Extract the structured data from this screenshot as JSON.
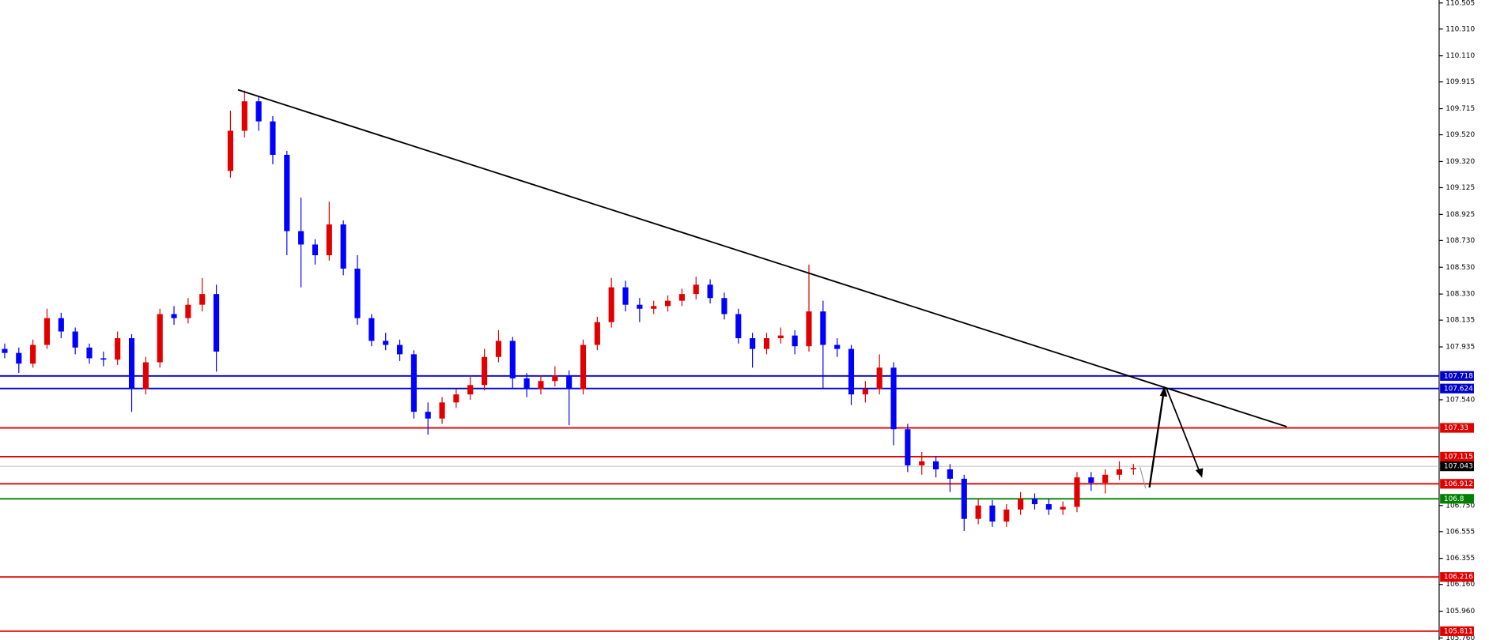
{
  "chart_data": {
    "type": "candlestick",
    "up_color": "#e00000",
    "down_color": "#0000ff",
    "series": {
      "open": [
        107.92,
        107.89,
        107.81,
        107.95,
        108.15,
        108.05,
        107.93,
        107.85,
        107.84,
        108.0,
        107.62,
        107.82,
        108.18,
        108.15,
        108.25,
        108.33,
        109.25,
        109.55,
        109.77,
        109.62,
        109.37,
        108.8,
        108.7,
        108.62,
        108.85,
        108.52,
        108.15,
        107.98,
        107.95,
        107.88,
        107.45,
        107.4,
        107.52,
        107.58,
        107.65,
        107.86,
        107.98,
        107.7,
        107.62,
        107.68,
        107.72,
        107.62,
        107.95,
        108.12,
        108.38,
        108.25,
        108.22,
        108.24,
        108.28,
        108.33,
        108.4,
        108.3,
        108.18,
        108.0,
        107.92,
        108.0,
        108.02,
        107.94,
        108.2,
        107.95,
        107.92,
        107.58,
        107.62,
        107.78,
        107.32,
        107.05,
        107.08,
        107.02,
        106.95,
        106.65,
        106.75,
        106.63,
        106.72,
        106.8,
        106.76,
        106.72,
        106.74,
        106.96,
        106.92,
        106.98,
        107.02
      ],
      "high": [
        107.96,
        107.93,
        107.99,
        108.22,
        108.19,
        108.08,
        107.96,
        107.9,
        108.05,
        108.03,
        107.86,
        108.22,
        108.24,
        108.3,
        108.45,
        108.4,
        109.7,
        109.85,
        109.81,
        109.66,
        109.4,
        109.05,
        108.74,
        109.02,
        108.88,
        108.62,
        108.18,
        108.04,
        107.99,
        107.91,
        107.52,
        107.56,
        107.62,
        107.72,
        107.92,
        108.06,
        108.01,
        107.74,
        107.72,
        107.79,
        107.76,
        107.99,
        108.16,
        108.45,
        108.43,
        108.3,
        108.28,
        108.32,
        108.37,
        108.46,
        108.44,
        108.34,
        108.22,
        108.04,
        108.04,
        108.08,
        108.06,
        108.55,
        108.28,
        108.0,
        107.95,
        107.68,
        107.88,
        107.82,
        107.36,
        107.15,
        107.12,
        107.06,
        106.98,
        106.8,
        106.79,
        106.76,
        106.85,
        106.84,
        106.8,
        106.78,
        107.0,
        107.0,
        107.02,
        107.08,
        107.06
      ],
      "low": [
        107.85,
        107.74,
        107.78,
        107.92,
        108.0,
        107.88,
        107.81,
        107.79,
        107.8,
        107.45,
        107.58,
        107.78,
        108.1,
        108.11,
        108.2,
        107.75,
        109.2,
        109.5,
        109.55,
        109.3,
        108.62,
        108.38,
        108.55,
        108.58,
        108.47,
        108.1,
        107.94,
        107.91,
        107.83,
        107.4,
        107.28,
        107.36,
        107.48,
        107.54,
        107.61,
        107.82,
        107.62,
        107.56,
        107.58,
        107.64,
        107.35,
        107.58,
        107.91,
        108.08,
        108.2,
        108.12,
        108.18,
        108.2,
        108.24,
        108.29,
        108.26,
        108.14,
        107.96,
        107.78,
        107.88,
        107.96,
        107.88,
        107.9,
        107.62,
        107.86,
        107.5,
        107.52,
        107.58,
        107.2,
        107.0,
        106.98,
        106.96,
        106.85,
        106.56,
        106.61,
        106.59,
        106.59,
        106.68,
        106.72,
        106.68,
        106.68,
        106.7,
        106.86,
        106.84,
        106.94,
        106.98
      ],
      "close": [
        107.89,
        107.81,
        107.95,
        108.15,
        108.05,
        107.93,
        107.85,
        107.84,
        108.0,
        107.62,
        107.82,
        108.18,
        108.15,
        108.25,
        108.33,
        107.9,
        109.55,
        109.77,
        109.62,
        109.37,
        108.8,
        108.7,
        108.62,
        108.85,
        108.52,
        108.15,
        107.98,
        107.95,
        107.88,
        107.45,
        107.4,
        107.52,
        107.58,
        107.65,
        107.86,
        107.98,
        107.7,
        107.62,
        107.68,
        107.72,
        107.62,
        107.95,
        108.12,
        108.38,
        108.25,
        108.22,
        108.24,
        108.28,
        108.33,
        108.4,
        108.3,
        108.18,
        108.0,
        107.92,
        108.0,
        108.02,
        107.94,
        108.2,
        107.95,
        107.92,
        107.58,
        107.62,
        107.78,
        107.32,
        107.05,
        107.08,
        107.02,
        106.95,
        106.65,
        106.75,
        106.63,
        106.72,
        106.8,
        106.76,
        106.72,
        106.74,
        106.96,
        106.92,
        106.98,
        107.02,
        107.03
      ]
    },
    "ylim": [
      105.745,
      110.527
    ],
    "yticks": [
      110.505,
      {
        "value": 110.31,
        "label": "110.310"
      },
      {
        "value": 110.11,
        "label": "110.110"
      },
      109.915,
      109.715,
      {
        "value": 109.52,
        "label": "109.520"
      },
      {
        "value": 109.32,
        "label": "109.320"
      },
      109.125,
      108.925,
      {
        "value": 108.73,
        "label": "108.730"
      },
      {
        "value": 108.53,
        "label": "108.530"
      },
      {
        "value": 108.33,
        "label": "108.330"
      },
      108.135,
      107.935,
      {
        "value": 107.54,
        "label": "107.540"
      },
      {
        "value": 106.75,
        "label": "106.750"
      },
      106.555,
      106.355,
      {
        "value": 106.16,
        "label": "106.160"
      },
      {
        "value": 105.96,
        "label": "105.960"
      },
      {
        "value": 105.76,
        "label": "105.760"
      }
    ],
    "levels": [
      {
        "value": 107.718,
        "color": "#0000cc"
      },
      {
        "value": 107.624,
        "color": "#0000cc"
      },
      {
        "value": 107.33,
        "color": "#e00000"
      },
      {
        "value": 107.115,
        "color": "#e00000"
      },
      {
        "value": 106.912,
        "color": "#e00000"
      },
      {
        "value": 106.8,
        "color": "#008000"
      },
      {
        "value": 106.216,
        "color": "#e00000"
      },
      {
        "value": 105.811,
        "color": "#e00000"
      }
    ],
    "current_price": 107.043
  }
}
